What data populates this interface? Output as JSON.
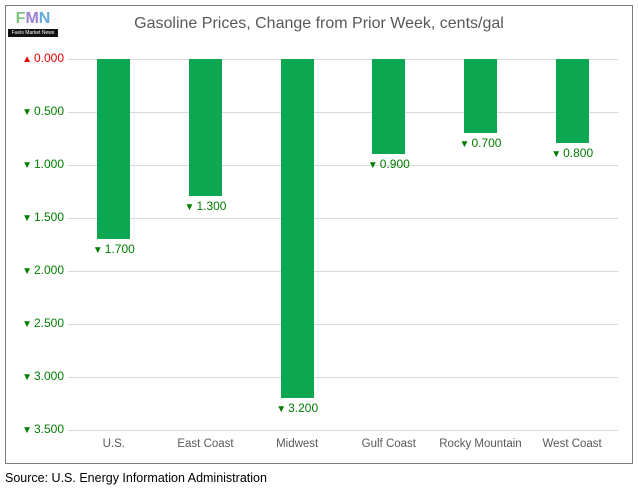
{
  "logo": {
    "letters": [
      {
        "char": "F",
        "color": "#7cc57f"
      },
      {
        "char": "M",
        "color": "#9a7fd1"
      },
      {
        "char": "N",
        "color": "#62a9e0"
      }
    ],
    "caption": "Fuels Market News"
  },
  "source_note": "Source: U.S. Energy Information Administration",
  "colors": {
    "bar": "#0ca750",
    "decrease_text": "#007d00",
    "increase_text": "#e60000",
    "gridline": "#d9d9d9",
    "chart_border": "#7f7f7f",
    "axis_text": "#595959",
    "title_text": "#595959"
  },
  "chart_data": {
    "type": "bar",
    "title": "Gasoline Prices, Change from Prior Week, cents/gal",
    "xlabel": "",
    "ylabel": "",
    "categories": [
      "U.S.",
      "East Coast",
      "Midwest",
      "Gulf Coast",
      "Rocky Mountain",
      "West Coast"
    ],
    "values": [
      -1.7,
      -1.3,
      -3.2,
      -0.9,
      -0.7,
      -0.8
    ],
    "bar_labels": [
      {
        "marker": "▼",
        "text": "1.700"
      },
      {
        "marker": "▼",
        "text": "1.300"
      },
      {
        "marker": "▼",
        "text": "3.200"
      },
      {
        "marker": "▼",
        "text": "0.900"
      },
      {
        "marker": "▼",
        "text": "0.700"
      },
      {
        "marker": "▼",
        "text": "0.800"
      }
    ],
    "y_axis_ticks": [
      {
        "marker": "▲",
        "label": "0.000",
        "direction": "up"
      },
      {
        "marker": "▼",
        "label": "0.500",
        "direction": "down"
      },
      {
        "marker": "▼",
        "label": "1.000",
        "direction": "down"
      },
      {
        "marker": "▼",
        "label": "1.500",
        "direction": "down"
      },
      {
        "marker": "▼",
        "label": "2.000",
        "direction": "down"
      },
      {
        "marker": "▼",
        "label": "2.500",
        "direction": "down"
      },
      {
        "marker": "▼",
        "label": "3.000",
        "direction": "down"
      },
      {
        "marker": "▼",
        "label": "3.500",
        "direction": "down"
      }
    ],
    "ylim_cents_decline": [
      0,
      3.5
    ],
    "grid": true,
    "legend": false
  }
}
